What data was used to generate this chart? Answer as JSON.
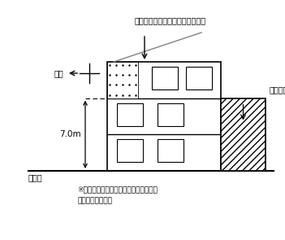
{
  "background_color": "#ffffff",
  "label_existing": "既存不適格部分は適用を除外する",
  "label_north": "真北",
  "label_annex": "増築部分",
  "label_height": "7.0m",
  "label_ground": "地盤面",
  "note_line1": "※増築部分は高度地区の制限に突出して",
  "note_line2": "　建築できない。"
}
